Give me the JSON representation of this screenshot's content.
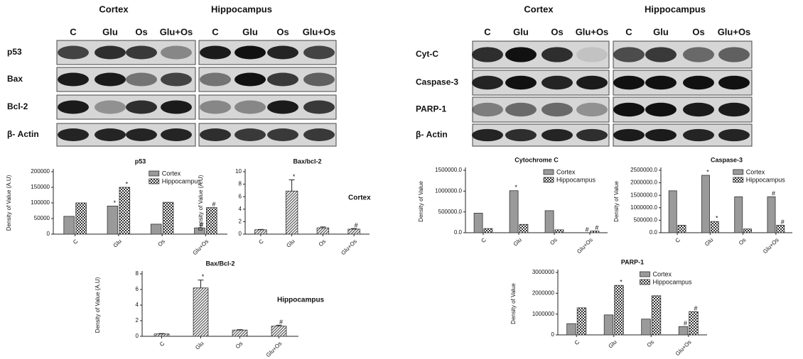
{
  "blots": [
    {
      "headers": [
        "Cortex",
        "Hippocampus"
      ],
      "lanes": [
        "C",
        "Glu",
        "Os",
        "Glu+Os"
      ],
      "rows": [
        "p53",
        "Bax",
        "Bcl-2",
        "β- Actin"
      ]
    },
    {
      "headers": [
        "Cortex",
        "Hippocampus"
      ],
      "lanes": [
        "C",
        "Glu",
        "Os",
        "Glu+Os"
      ],
      "rows": [
        "Cyt-C",
        "Caspase-3",
        "PARP-1",
        "β- Actin"
      ]
    }
  ],
  "chart_data": [
    {
      "type": "bar",
      "title": "p53",
      "ylabel": "Density of Value (A.U)",
      "categories": [
        "C",
        "Glu",
        "Os",
        "Glu+Os"
      ],
      "series": [
        {
          "name": "Cortex",
          "color": "#9a9a9a",
          "pattern": "solid",
          "values": [
            57000,
            90000,
            32000,
            20000
          ],
          "marks": [
            null,
            "*",
            null,
            "#"
          ]
        },
        {
          "name": "Hippocampus",
          "color": "#333333",
          "pattern": "checker",
          "values": [
            100000,
            150000,
            102000,
            85000
          ],
          "marks": [
            null,
            "*",
            null,
            "#"
          ]
        }
      ],
      "ylim": [
        0,
        200000
      ],
      "yticks": [
        0,
        50000,
        100000,
        150000,
        200000
      ],
      "legend": "upper right"
    },
    {
      "type": "bar",
      "title": "Bax/bcl-2",
      "ylabel": "Density of Value (A.U)",
      "side_label": "Cortex",
      "categories": [
        "C",
        "Glu",
        "Os",
        "Glu+Os"
      ],
      "color": "#555555",
      "pattern": "hatch",
      "values": [
        0.7,
        6.9,
        1.0,
        0.8
      ],
      "errors": [
        0.05,
        1.8,
        0.15,
        0.1
      ],
      "marks": [
        null,
        "*",
        null,
        "#"
      ],
      "ylim": [
        0,
        10
      ],
      "yticks": [
        0,
        2,
        4,
        6,
        8,
        10
      ]
    },
    {
      "type": "bar",
      "title": "Cytochrome C",
      "ylabel": "Density of Value",
      "categories": [
        "C",
        "Glu",
        "Os",
        "Glu+Os"
      ],
      "series": [
        {
          "name": "Cortex",
          "color": "#9a9a9a",
          "pattern": "solid",
          "values": [
            470000,
            1010000,
            530000,
            0
          ],
          "marks": [
            null,
            "*",
            null,
            "#"
          ]
        },
        {
          "name": "Hippocampus",
          "color": "#333333",
          "pattern": "checker",
          "values": [
            100000,
            200000,
            70000,
            40000
          ],
          "marks": [
            null,
            null,
            null,
            "#"
          ]
        }
      ],
      "ylim": [
        0,
        1500000
      ],
      "yticks": [
        {
          "value": 0,
          "label": "0.0"
        },
        {
          "value": 500000,
          "label": "500000.0"
        },
        {
          "value": 1000000,
          "label": "1000000.0"
        },
        {
          "value": 1500000,
          "label": "1500000.0"
        }
      ],
      "legend": "upper right"
    },
    {
      "type": "bar",
      "title": "Caspase-3",
      "ylabel": "Density of Value",
      "categories": [
        "C",
        "Glu",
        "Os",
        "Glu+Os"
      ],
      "series": [
        {
          "name": "Cortex",
          "color": "#9a9a9a",
          "pattern": "solid",
          "values": [
            1680000,
            2300000,
            1440000,
            1440000
          ],
          "marks": [
            null,
            "*",
            null,
            "#"
          ]
        },
        {
          "name": "Hippocampus",
          "color": "#333333",
          "pattern": "checker",
          "values": [
            300000,
            450000,
            150000,
            300000
          ],
          "marks": [
            null,
            "*",
            null,
            "#"
          ]
        }
      ],
      "ylim": [
        0,
        2500000
      ],
      "yticks": [
        {
          "value": 0,
          "label": "0.0"
        },
        {
          "value": 500000,
          "label": "500000.0"
        },
        {
          "value": 1000000,
          "label": "1000000.0"
        },
        {
          "value": 1500000,
          "label": "1500000.0"
        },
        {
          "value": 2000000,
          "label": "2000000.0"
        },
        {
          "value": 2500000,
          "label": "2500000.0"
        }
      ],
      "legend": "upper right"
    },
    {
      "type": "bar",
      "title": "Bax/Bcl-2",
      "ylabel": "Density of Value (A.U)",
      "side_label": "Hippocampus",
      "categories": [
        "C",
        "Glu",
        "Os",
        "Glu+Os"
      ],
      "color": "#555555",
      "pattern": "hatch",
      "values": [
        0.3,
        6.2,
        0.8,
        1.3
      ],
      "errors": [
        0.05,
        1.0,
        0.05,
        0.12
      ],
      "marks": [
        null,
        "*",
        null,
        "#"
      ],
      "ylim": [
        0,
        8
      ],
      "yticks": [
        0,
        2,
        4,
        6,
        8
      ]
    },
    {
      "type": "bar",
      "title": "PARP-1",
      "ylabel": "Density of Value",
      "categories": [
        "C",
        "Glu",
        "Os",
        "Glu+Os"
      ],
      "series": [
        {
          "name": "Cortex",
          "color": "#9a9a9a",
          "pattern": "solid",
          "values": [
            540000,
            960000,
            760000,
            400000
          ],
          "marks": [
            null,
            null,
            null,
            "#"
          ]
        },
        {
          "name": "Hippocampus",
          "color": "#333333",
          "pattern": "checker",
          "values": [
            1300000,
            2380000,
            1880000,
            1120000
          ],
          "marks": [
            null,
            "*",
            null,
            "#"
          ]
        }
      ],
      "ylim": [
        0,
        3000000
      ],
      "yticks": [
        0,
        1000000,
        2000000,
        3000000
      ],
      "legend": "upper right"
    }
  ]
}
